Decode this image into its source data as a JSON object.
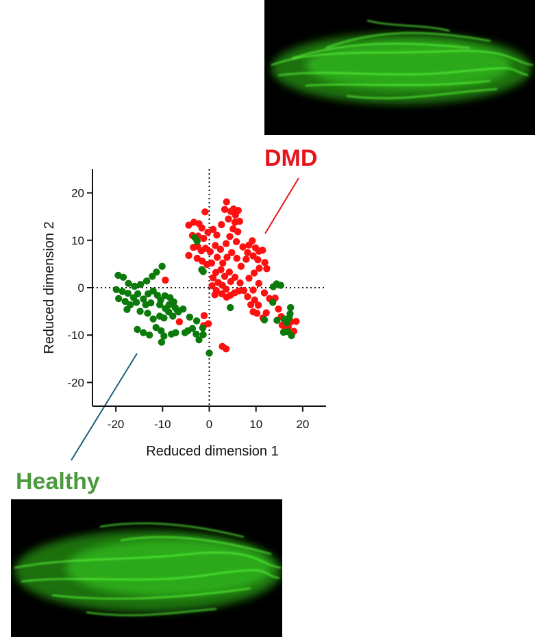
{
  "labels": {
    "dmd": "DMD",
    "healthy": "Healthy"
  },
  "images": {
    "top_icon": "green-fluorescent-myotube-micrograph",
    "bottom_icon": "green-fluorescent-myotube-micrograph"
  },
  "colors": {
    "dmd": "#ff1010",
    "healthy": "#0b7a0b",
    "dmd_label": "#e8131b",
    "healthy_label": "#4c9a3d",
    "leader_dmd": "#e8131b",
    "leader_healthy": "#1a5e78"
  },
  "chart_data": {
    "type": "scatter",
    "xlabel": "Reduced dimension 1",
    "ylabel": "Reduced dimension 2",
    "xlim": [
      -25,
      25
    ],
    "ylim": [
      -25,
      25
    ],
    "xticks": [
      -20,
      -10,
      0,
      10,
      20
    ],
    "yticks": [
      -20,
      -10,
      0,
      10,
      20
    ],
    "reference_lines": [
      {
        "axis": "x",
        "value": 0,
        "style": "dotted"
      },
      {
        "axis": "y",
        "value": 0,
        "style": "dotted"
      }
    ],
    "grid": false,
    "series": [
      {
        "name": "DMD",
        "points": [
          [
            -4.4,
            13.2
          ],
          [
            -3.3,
            13.8
          ],
          [
            -2.2,
            13.5
          ],
          [
            -1.6,
            12.6
          ],
          [
            -0.9,
            16.0
          ],
          [
            -3.6,
            11.0
          ],
          [
            -2.4,
            10.9
          ],
          [
            -1.2,
            10.4
          ],
          [
            -0.3,
            11.7
          ],
          [
            0.8,
            12.3
          ],
          [
            1.6,
            11.1
          ],
          [
            2.6,
            13.3
          ],
          [
            3.3,
            16.5
          ],
          [
            3.7,
            18.1
          ],
          [
            4.6,
            16.1
          ],
          [
            5.2,
            16.6
          ],
          [
            5.6,
            15.3
          ],
          [
            6.2,
            16.3
          ],
          [
            4.1,
            14.5
          ],
          [
            5.5,
            13.8
          ],
          [
            6.5,
            14.0
          ],
          [
            5.1,
            12.4
          ],
          [
            6.1,
            11.8
          ],
          [
            4.4,
            10.8
          ],
          [
            3.6,
            9.3
          ],
          [
            5.8,
            9.7
          ],
          [
            7.2,
            8.6
          ],
          [
            8.5,
            9.0
          ],
          [
            9.2,
            9.9
          ],
          [
            9.9,
            8.4
          ],
          [
            10.6,
            7.7
          ],
          [
            11.4,
            7.9
          ],
          [
            8.2,
            7.4
          ],
          [
            9.4,
            6.7
          ],
          [
            10.4,
            5.9
          ],
          [
            11.9,
            5.3
          ],
          [
            12.3,
            4.0
          ],
          [
            10.7,
            4.1
          ],
          [
            9.6,
            3.1
          ],
          [
            8.5,
            2.0
          ],
          [
            7.9,
            6.0
          ],
          [
            6.8,
            4.5
          ],
          [
            5.9,
            6.2
          ],
          [
            4.8,
            7.4
          ],
          [
            3.8,
            6.4
          ],
          [
            2.4,
            8.1
          ],
          [
            1.3,
            8.9
          ],
          [
            0.2,
            7.6
          ],
          [
            -0.8,
            8.3
          ],
          [
            -1.7,
            7.8
          ],
          [
            -2.5,
            8.7
          ],
          [
            -3.4,
            8.5
          ],
          [
            -4.4,
            6.8
          ],
          [
            -2.6,
            6.2
          ],
          [
            -1.5,
            5.6
          ],
          [
            -0.5,
            4.9
          ],
          [
            0.5,
            5.2
          ],
          [
            1.7,
            6.4
          ],
          [
            2.9,
            5.2
          ],
          [
            4.3,
            3.3
          ],
          [
            3.3,
            2.4
          ],
          [
            2.5,
            3.8
          ],
          [
            1.4,
            3.2
          ],
          [
            0.8,
            2.1
          ],
          [
            1.9,
            1.1
          ],
          [
            2.8,
            0.5
          ],
          [
            3.6,
            -0.3
          ],
          [
            4.6,
            1.3
          ],
          [
            5.5,
            2.2
          ],
          [
            6.6,
            1.0
          ],
          [
            7.4,
            -0.6
          ],
          [
            6.3,
            -0.7
          ],
          [
            5.4,
            -1.1
          ],
          [
            4.5,
            -1.6
          ],
          [
            3.7,
            -2.0
          ],
          [
            2.7,
            -1.3
          ],
          [
            1.5,
            -0.6
          ],
          [
            0.6,
            0.4
          ],
          [
            1.2,
            -1.5
          ],
          [
            8.2,
            -1.9
          ],
          [
            9.4,
            -0.5
          ],
          [
            10.6,
            0.9
          ],
          [
            11.8,
            -1.1
          ],
          [
            12.9,
            -2.3
          ],
          [
            9.7,
            -2.6
          ],
          [
            10.5,
            -3.7
          ],
          [
            8.9,
            -3.6
          ],
          [
            9.4,
            -5.1
          ],
          [
            10.2,
            -5.4
          ],
          [
            11.5,
            -6.4
          ],
          [
            12.2,
            -5.3
          ],
          [
            14.1,
            -2.2
          ],
          [
            14.8,
            -4.5
          ],
          [
            15.4,
            -6.1
          ],
          [
            16.1,
            -6.9
          ],
          [
            15.6,
            -7.9
          ],
          [
            16.9,
            -8.3
          ],
          [
            17.5,
            -7.2
          ],
          [
            18.6,
            -7.1
          ],
          [
            18.1,
            -9.2
          ],
          [
            16.3,
            -9.0
          ],
          [
            -9.4,
            1.6
          ],
          [
            -6.4,
            -7.2
          ],
          [
            -1.1,
            -5.9
          ],
          [
            -0.2,
            -7.6
          ],
          [
            -1.2,
            -8.0
          ],
          [
            2.8,
            -12.4
          ],
          [
            3.6,
            -12.9
          ]
        ]
      },
      {
        "name": "Healthy",
        "points": [
          [
            -19.5,
            2.6
          ],
          [
            -18.4,
            2.2
          ],
          [
            -17.3,
            0.9
          ],
          [
            -16.0,
            0.3
          ],
          [
            -14.7,
            0.7
          ],
          [
            -13.4,
            1.4
          ],
          [
            -12.2,
            2.4
          ],
          [
            -11.3,
            3.3
          ],
          [
            -10.1,
            4.5
          ],
          [
            -19.9,
            -0.4
          ],
          [
            -18.6,
            -0.8
          ],
          [
            -17.4,
            -1.2
          ],
          [
            -16.2,
            -2.1
          ],
          [
            -15.3,
            -1.3
          ],
          [
            -14.1,
            -2.4
          ],
          [
            -13.1,
            -1.3
          ],
          [
            -12.0,
            -0.7
          ],
          [
            -11.1,
            -1.6
          ],
          [
            -10.4,
            -2.6
          ],
          [
            -9.5,
            -1.7
          ],
          [
            -8.4,
            -2.1
          ],
          [
            -7.6,
            -3.0
          ],
          [
            -7.3,
            -4.2
          ],
          [
            -8.6,
            -3.6
          ],
          [
            -9.4,
            -4.4
          ],
          [
            -10.6,
            -3.6
          ],
          [
            -12.5,
            -3.2
          ],
          [
            -13.6,
            -3.6
          ],
          [
            -15.6,
            -3.1
          ],
          [
            -16.9,
            -3.6
          ],
          [
            -17.6,
            -4.6
          ],
          [
            -19.4,
            -2.3
          ],
          [
            -18.0,
            -2.9
          ],
          [
            -14.8,
            -5.0
          ],
          [
            -13.2,
            -5.4
          ],
          [
            -12.0,
            -6.6
          ],
          [
            -10.6,
            -6.0
          ],
          [
            -9.7,
            -6.4
          ],
          [
            -8.7,
            -5.1
          ],
          [
            -7.8,
            -6.0
          ],
          [
            -6.6,
            -5.1
          ],
          [
            -6.9,
            -4.7
          ],
          [
            -5.6,
            -4.5
          ],
          [
            -15.4,
            -8.8
          ],
          [
            -14.1,
            -9.5
          ],
          [
            -12.8,
            -10.0
          ],
          [
            -11.4,
            -8.4
          ],
          [
            -10.3,
            -9.1
          ],
          [
            -9.7,
            -10.2
          ],
          [
            -8.1,
            -9.8
          ],
          [
            -7.2,
            -9.5
          ],
          [
            -10.2,
            -11.5
          ],
          [
            -5.2,
            -9.5
          ],
          [
            -4.6,
            -9.1
          ],
          [
            -3.6,
            -8.6
          ],
          [
            -4.2,
            -6.2
          ],
          [
            -2.7,
            -7.0
          ],
          [
            -2.8,
            -9.8
          ],
          [
            -1.4,
            -8.5
          ],
          [
            -1.3,
            -9.9
          ],
          [
            -2.2,
            -11.0
          ],
          [
            0.0,
            -13.8
          ],
          [
            -2.6,
            9.8
          ],
          [
            -3.1,
            10.6
          ],
          [
            -1.6,
            3.8
          ],
          [
            -1.3,
            3.4
          ],
          [
            4.5,
            -4.2
          ],
          [
            13.7,
            0.2
          ],
          [
            14.4,
            0.8
          ],
          [
            15.3,
            0.5
          ],
          [
            13.6,
            -3.1
          ],
          [
            11.8,
            -6.8
          ],
          [
            17.4,
            -4.2
          ],
          [
            17.1,
            -6.4
          ],
          [
            16.6,
            -7.4
          ],
          [
            17.6,
            -10.1
          ],
          [
            16.8,
            -9.3
          ],
          [
            15.9,
            -9.4
          ],
          [
            16.1,
            -6.6
          ],
          [
            17.3,
            -5.5
          ],
          [
            14.5,
            -6.9
          ]
        ]
      }
    ]
  }
}
